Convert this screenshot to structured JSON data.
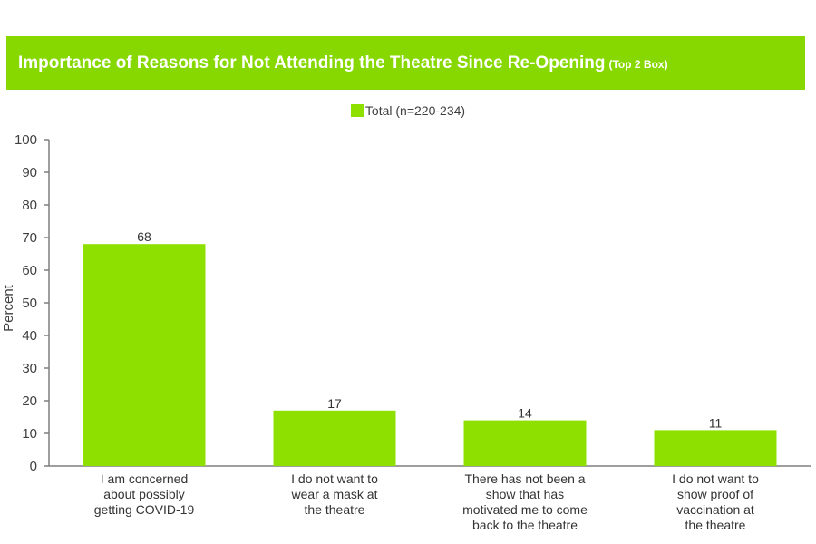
{
  "chart_data": {
    "type": "bar",
    "title": "Importance of Reasons for Not Attending the Theatre Since Re-Opening",
    "subtitle": "(Top 2 Box)",
    "ylabel": "Percent",
    "xlabel": "",
    "ylim": [
      0,
      100
    ],
    "yticks": [
      0,
      10,
      20,
      30,
      40,
      50,
      60,
      70,
      80,
      90,
      100
    ],
    "categories": [
      [
        "I am concerned",
        "about possibly",
        "getting COVID-19"
      ],
      [
        "I do not want to",
        "wear a mask at",
        "the theatre"
      ],
      [
        "There has not been a",
        "show that has",
        "motivated me to come",
        "back to the theatre"
      ],
      [
        "I do not want to",
        "show proof of",
        "vaccination at",
        "the theatre"
      ]
    ],
    "series": [
      {
        "name": "Total (n=220-234)",
        "values": [
          68,
          17,
          14,
          11
        ],
        "color": "#8ee000"
      }
    ],
    "legend": "top-center",
    "grid": false
  }
}
